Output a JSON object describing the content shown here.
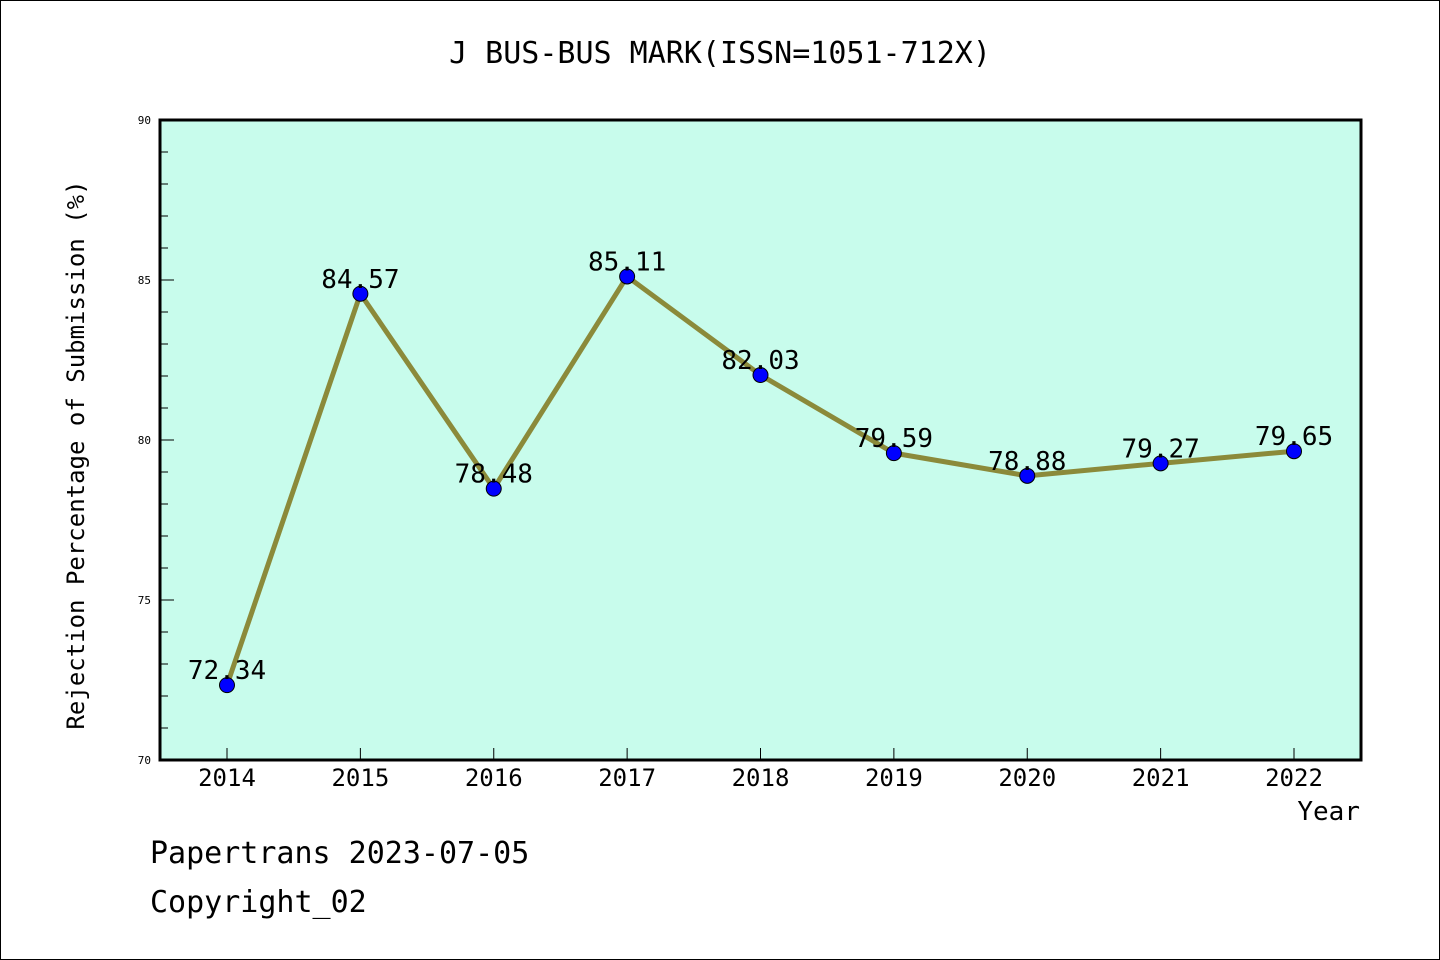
{
  "chart_data": {
    "type": "line",
    "title": "J BUS-BUS MARK(ISSN=1051-712X)",
    "xlabel": "Year",
    "ylabel": "Rejection Percentage of Submission (%)",
    "categories": [
      "2014",
      "2015",
      "2016",
      "2017",
      "2018",
      "2019",
      "2020",
      "2021",
      "2022"
    ],
    "series": [
      {
        "values": [
          72.34,
          84.57,
          78.48,
          85.11,
          82.03,
          79.59,
          78.88,
          79.27,
          79.65
        ],
        "data_labels": [
          "72.34",
          "84.57",
          "78.48",
          "85.11",
          "82.03",
          "79.59",
          "78.88",
          "79.27",
          "79.65"
        ]
      }
    ],
    "ylim": [
      70,
      90
    ],
    "yticks": [
      70,
      75,
      80,
      85,
      90
    ],
    "ytick_labels": [
      "70",
      "75",
      "80",
      "85",
      "90"
    ],
    "grid": false,
    "colors": {
      "plot_background": "#c8fcec",
      "line": "#8b8a3a",
      "marker": "#0000ff"
    }
  },
  "footer": {
    "source": "Papertrans 2023-07-05",
    "copyright": "Copyright_02"
  }
}
